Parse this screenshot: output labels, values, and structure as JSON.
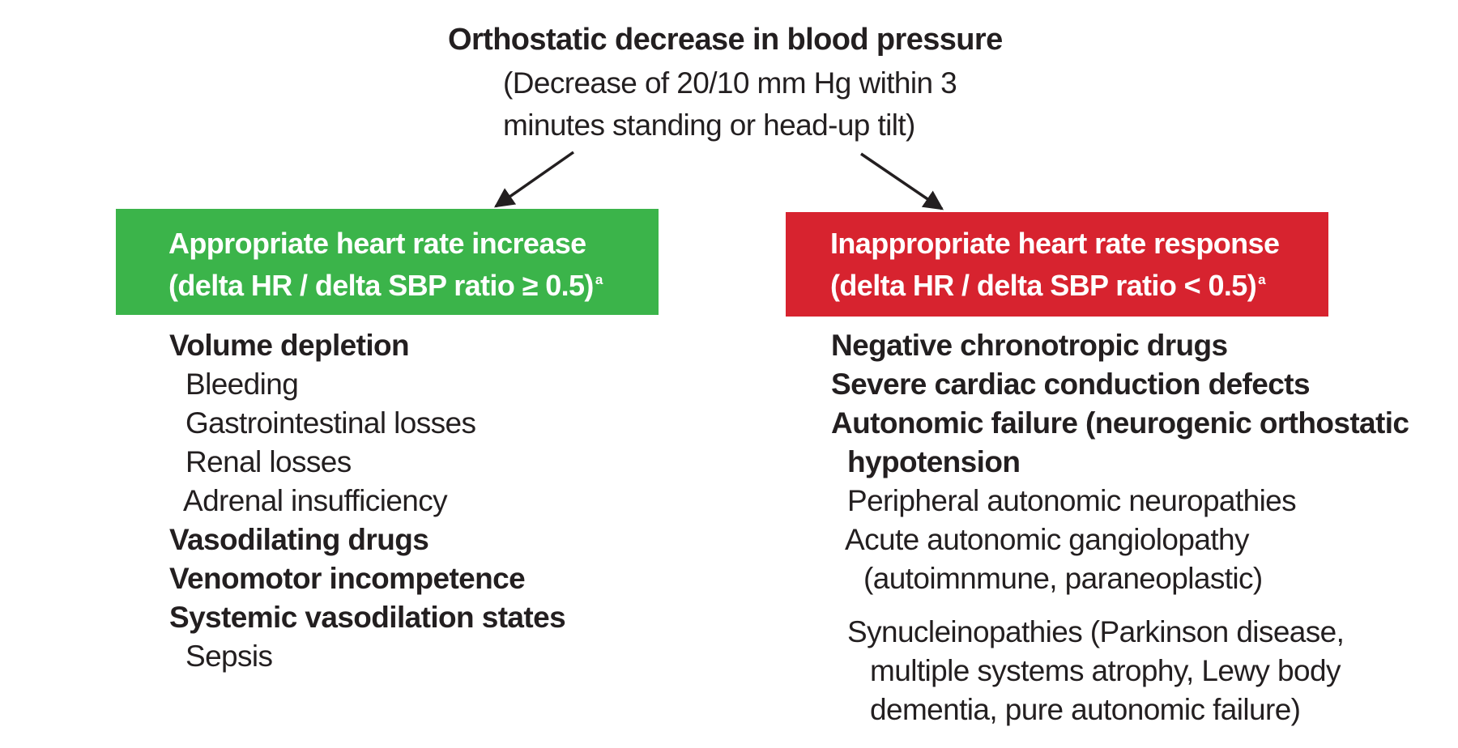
{
  "header": {
    "title": "Orthostatic decrease in blood pressure",
    "subtitle_line1": "(Decrease of 20/10 mm Hg within 3",
    "subtitle_line2": "minutes standing or head-up tilt)"
  },
  "colors": {
    "left_box": "#3bb44a",
    "right_box": "#d7232f",
    "text": "#231f20"
  },
  "left": {
    "box_line1": "Appropriate heart rate increase",
    "box_line2": "(delta HR / delta SBP ratio ≥ 0.5)",
    "box_sup": "a",
    "items": [
      {
        "text": "Volume depletion",
        "bold": true
      },
      {
        "text": "Bleeding",
        "bold": false
      },
      {
        "text": "Gastrointestinal losses",
        "bold": false
      },
      {
        "text": "Renal losses",
        "bold": false
      },
      {
        "text": "Adrenal insufficiency",
        "bold": false
      },
      {
        "text": "Vasodilating drugs",
        "bold": true
      },
      {
        "text": "Venomotor incompetence",
        "bold": true
      },
      {
        "text": "Systemic vasodilation states",
        "bold": true
      },
      {
        "text": "Sepsis",
        "bold": false
      }
    ]
  },
  "right": {
    "box_line1": "Inappropriate heart rate response",
    "box_line2": "(delta HR / delta SBP ratio < 0.5)",
    "box_sup": "a",
    "items": [
      {
        "text": "Negative chronotropic drugs",
        "bold": true
      },
      {
        "text": "Severe cardiac conduction defects",
        "bold": true
      },
      {
        "text": "Autonomic failure (neurogenic orthostatic",
        "bold": true
      },
      {
        "text": "hypotension",
        "bold": true
      },
      {
        "text": "Peripheral autonomic neuropathies",
        "bold": false
      },
      {
        "text": "Acute autonomic gangiolopathy",
        "bold": false
      },
      {
        "text": "(autoimnmune, paraneoplastic)",
        "bold": false
      },
      {
        "text": "Synucleinopathies (Parkinson disease,",
        "bold": false
      },
      {
        "text": "multiple systems atrophy, Lewy body",
        "bold": false
      },
      {
        "text": "dementia, pure autonomic failure)",
        "bold": false
      }
    ]
  }
}
